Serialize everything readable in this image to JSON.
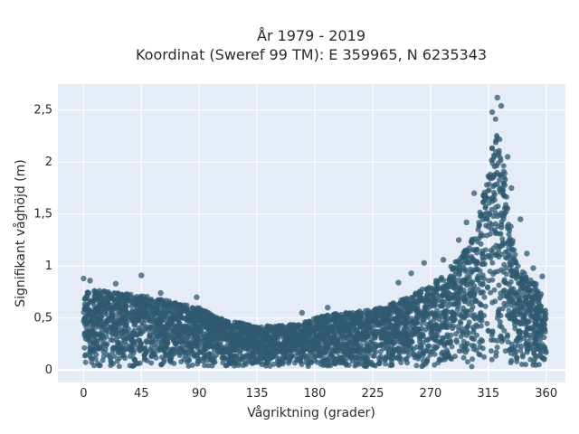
{
  "chart_data": {
    "type": "scatter",
    "title_line1": "År 1979 - 2019",
    "title_line2": "Koordinat (Sweref 99 TM): E 359965, N 6235343",
    "xlabel": "Vågriktning (grader)",
    "ylabel": "Signifikant våghöjd (m)",
    "xlim": [
      -20,
      375
    ],
    "ylim": [
      -0.12,
      2.75
    ],
    "xticks": [
      0,
      45,
      90,
      135,
      180,
      225,
      270,
      315,
      360
    ],
    "xtick_labels": [
      "0",
      "45",
      "90",
      "135",
      "180",
      "225",
      "270",
      "315",
      "360"
    ],
    "yticks": [
      0,
      0.5,
      1,
      1.5,
      2,
      2.5
    ],
    "ytick_labels": [
      "0",
      "0,5",
      "1",
      "1,5",
      "2",
      "2,5"
    ],
    "grid": true,
    "background": "#e5ecf6",
    "marker_color": "#2f5a70",
    "envelope": {
      "direction_deg": [
        0,
        15,
        30,
        45,
        60,
        75,
        90,
        105,
        120,
        135,
        150,
        165,
        180,
        195,
        210,
        225,
        240,
        255,
        270,
        280,
        290,
        300,
        305,
        310,
        315,
        318,
        321,
        324,
        327,
        330,
        335,
        340,
        345,
        350,
        355,
        360
      ],
      "max_height_m": [
        0.78,
        0.76,
        0.75,
        0.72,
        0.68,
        0.64,
        0.6,
        0.5,
        0.46,
        0.42,
        0.43,
        0.44,
        0.5,
        0.54,
        0.56,
        0.58,
        0.64,
        0.72,
        0.82,
        0.92,
        1.05,
        1.2,
        1.35,
        1.6,
        1.95,
        2.2,
        2.45,
        2.3,
        2.0,
        1.6,
        1.2,
        1.0,
        0.9,
        0.85,
        0.8,
        0.55
      ],
      "min_height_m": 0.03
    },
    "outliers": [
      {
        "x": 0,
        "y": 0.88
      },
      {
        "x": 5,
        "y": 0.86
      },
      {
        "x": 25,
        "y": 0.83
      },
      {
        "x": 45,
        "y": 0.91
      },
      {
        "x": 60,
        "y": 0.74
      },
      {
        "x": 88,
        "y": 0.7
      },
      {
        "x": 245,
        "y": 0.84
      },
      {
        "x": 255,
        "y": 0.93
      },
      {
        "x": 265,
        "y": 1.03
      },
      {
        "x": 280,
        "y": 1.06
      },
      {
        "x": 292,
        "y": 1.25
      },
      {
        "x": 298,
        "y": 1.42
      },
      {
        "x": 304,
        "y": 1.7
      },
      {
        "x": 318,
        "y": 2.48
      },
      {
        "x": 322,
        "y": 2.62
      },
      {
        "x": 325,
        "y": 2.54
      },
      {
        "x": 330,
        "y": 2.05
      },
      {
        "x": 333,
        "y": 1.75
      },
      {
        "x": 340,
        "y": 1.45
      },
      {
        "x": 345,
        "y": 1.12
      },
      {
        "x": 350,
        "y": 0.98
      },
      {
        "x": 357,
        "y": 0.9
      },
      {
        "x": 170,
        "y": 0.55
      },
      {
        "x": 190,
        "y": 0.6
      }
    ]
  }
}
